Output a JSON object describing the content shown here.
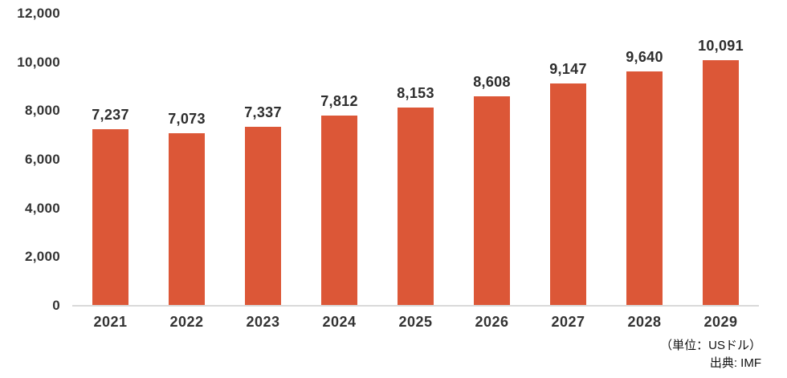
{
  "chart_data": {
    "type": "bar",
    "categories": [
      "2021",
      "2022",
      "2023",
      "2024",
      "2025",
      "2026",
      "2027",
      "2028",
      "2029"
    ],
    "values": [
      7237,
      7073,
      7337,
      7812,
      8153,
      8608,
      9147,
      9640,
      10091
    ],
    "value_labels": [
      "7,237",
      "7,073",
      "7,337",
      "7,812",
      "8,153",
      "8,608",
      "9,147",
      "9,640",
      "10,091"
    ],
    "title": "",
    "xlabel": "",
    "ylabel": "",
    "ylim": [
      0,
      12000
    ],
    "y_ticks": [
      0,
      2000,
      4000,
      6000,
      8000,
      10000,
      12000
    ],
    "y_tick_labels": [
      "0",
      "2,000",
      "4,000",
      "6,000",
      "8,000",
      "10,000",
      "12,000"
    ],
    "grid": false,
    "legend": "none",
    "bar_color": "#DC5737",
    "axis_line_color": "#d9d9d9",
    "text_color": "#333333"
  },
  "footer": {
    "unit": "（単位：USドル）",
    "source": "出典: IMF"
  }
}
